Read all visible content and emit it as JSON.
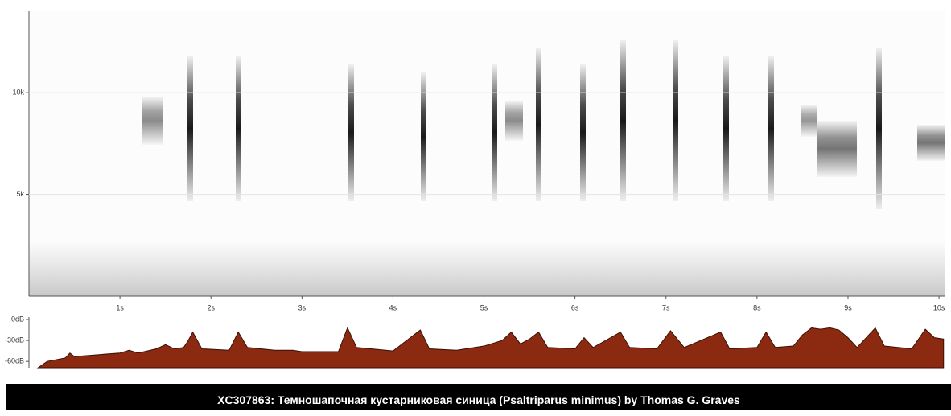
{
  "chart_data": [
    {
      "type": "spectrogram",
      "xlim": [
        0,
        10.07
      ],
      "ylim": [
        0,
        14
      ],
      "xticks": [
        {
          "value": 1,
          "label": "1s"
        },
        {
          "value": 2,
          "label": "2s"
        },
        {
          "value": 3,
          "label": "3s"
        },
        {
          "value": 4,
          "label": "4s"
        },
        {
          "value": 5,
          "label": "5s"
        },
        {
          "value": 6,
          "label": "6s"
        },
        {
          "value": 7,
          "label": "7s"
        },
        {
          "value": 8,
          "label": "8s"
        },
        {
          "value": 9,
          "label": "9s"
        },
        {
          "value": 10,
          "label": "10s"
        }
      ],
      "yticks": [
        {
          "value": 5,
          "label": "5k"
        },
        {
          "value": 10,
          "label": "10k"
        }
      ]
    },
    {
      "type": "area",
      "color": "#8b2a10",
      "xlim": [
        0,
        10.07
      ],
      "ylim": [
        -69,
        0
      ],
      "yticks": [
        {
          "value": 0,
          "label": "0dB"
        },
        {
          "value": -30,
          "label": "-30dB"
        },
        {
          "value": -60,
          "label": "-60dB"
        }
      ],
      "x": [
        0.1,
        0.2,
        0.4,
        0.45,
        0.5,
        0.8,
        1.0,
        1.1,
        1.2,
        1.4,
        1.5,
        1.6,
        1.7,
        1.75,
        1.8,
        1.85,
        1.9,
        2.2,
        2.3,
        2.4,
        2.7,
        2.9,
        3.0,
        3.4,
        3.5,
        3.6,
        4.0,
        4.3,
        4.4,
        4.7,
        4.9,
        5.0,
        5.2,
        5.3,
        5.4,
        5.5,
        5.6,
        5.7,
        6.0,
        6.1,
        6.2,
        6.5,
        6.6,
        6.9,
        7.05,
        7.2,
        7.6,
        7.7,
        8.0,
        8.1,
        8.2,
        8.4,
        8.5,
        8.6,
        8.7,
        8.8,
        8.9,
        9.0,
        9.1,
        9.3,
        9.4,
        9.7,
        9.85,
        9.95,
        10.05
      ],
      "values": [
        -69,
        -60,
        -55,
        -48,
        -53,
        -50,
        -48,
        -44,
        -48,
        -42,
        -36,
        -42,
        -40,
        -30,
        -18,
        -30,
        -42,
        -44,
        -18,
        -40,
        -44,
        -44,
        -46,
        -46,
        -12,
        -40,
        -45,
        -15,
        -42,
        -44,
        -40,
        -38,
        -30,
        -18,
        -35,
        -28,
        -18,
        -40,
        -42,
        -26,
        -40,
        -18,
        -40,
        -42,
        -16,
        -40,
        -18,
        -42,
        -40,
        -18,
        -40,
        -38,
        -22,
        -12,
        -14,
        -12,
        -15,
        -26,
        -40,
        -12,
        -38,
        -42,
        -14,
        -26,
        -28
      ]
    }
  ],
  "caption": "XC307863: Темношапочная кустарниковая синица (Psaltriparus minimus) by Thomas G. Graves"
}
